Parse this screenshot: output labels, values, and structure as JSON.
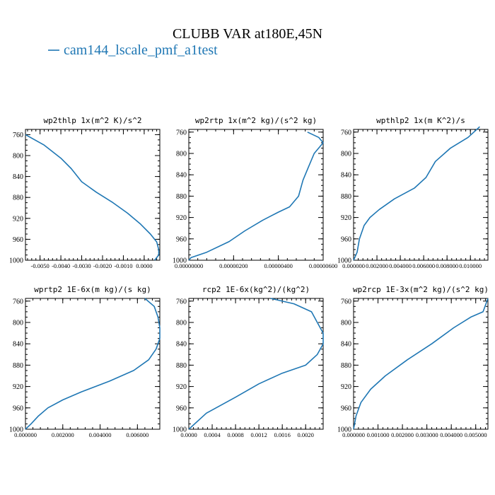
{
  "figure": {
    "title": "CLUBB VAR at180E,45N",
    "legend_label": "cam144_lscale_pmf_a1test",
    "line_color": "#1f77b4"
  },
  "chart_data": [
    {
      "type": "line",
      "title": "wp2thlp  1x(m^2 K)/s^2",
      "ylim": [
        1000,
        750
      ],
      "y_ticks": [
        760,
        800,
        840,
        880,
        920,
        960,
        1000
      ],
      "xlim": [
        -0.0057,
        0.00075
      ],
      "x_ticks": [
        -0.005,
        -0.004,
        -0.003,
        -0.002,
        -0.001,
        0.0
      ],
      "x_tick_labels": [
        "-0.0050",
        "-0.0040",
        "-0.0030",
        "-0.0020",
        "-0.0010",
        "0.0000"
      ],
      "series": [
        {
          "x": [
            -0.0057,
            -0.0048,
            -0.004,
            -0.0035,
            -0.003,
            -0.0023,
            -0.0015,
            -0.0008,
            -0.0002,
            0.0003,
            0.0006,
            0.0007,
            0.0007,
            0.0005
          ],
          "y": [
            760,
            780,
            805,
            825,
            850,
            870,
            890,
            910,
            930,
            950,
            965,
            980,
            990,
            1000
          ]
        }
      ]
    },
    {
      "type": "line",
      "title": "wp2rtp  1x(m^2 kg)/(s^2 kg)",
      "ylim": [
        1000,
        755
      ],
      "y_ticks": [
        760,
        800,
        840,
        880,
        920,
        960,
        1000
      ],
      "xlim": [
        0.0,
        6e-06
      ],
      "x_ticks": [
        0.0,
        2e-06,
        4e-06,
        6e-06
      ],
      "x_tick_labels": [
        "0.00000000",
        "0.00000200",
        "0.00000400",
        "0.00000600"
      ],
      "series": [
        {
          "x": [
            5.3e-06,
            5.8e-06,
            6e-06,
            5.6e-06,
            5.3e-06,
            5.1e-06,
            4.9e-06,
            4.5e-06,
            4e-06,
            3.3e-06,
            2.5e-06,
            1.8e-06,
            8e-07,
            1e-07,
            0.0
          ],
          "y": [
            760,
            770,
            780,
            800,
            830,
            850,
            880,
            900,
            910,
            925,
            945,
            965,
            985,
            995,
            1000
          ]
        }
      ]
    },
    {
      "type": "line",
      "title": "wpthlp2  1x(m K^2)/s",
      "ylim": [
        1000,
        755
      ],
      "y_ticks": [
        760,
        800,
        840,
        880,
        920,
        960,
        1000
      ],
      "xlim": [
        0.0,
        0.0115
      ],
      "x_ticks": [
        0.0,
        0.002,
        0.004,
        0.006,
        0.008,
        0.01
      ],
      "x_tick_labels": [
        "0.000000",
        "0.002000",
        "0.004000",
        "0.006000",
        "0.008000",
        "0.010000"
      ],
      "series": [
        {
          "x": [
            0.0,
            0.0003,
            0.0005,
            0.0009,
            0.0014,
            0.0022,
            0.0035,
            0.0052,
            0.0062,
            0.007,
            0.0083,
            0.0098,
            0.0108
          ],
          "y": [
            1000,
            985,
            960,
            935,
            920,
            905,
            885,
            865,
            845,
            815,
            790,
            770,
            750
          ]
        }
      ]
    },
    {
      "type": "line",
      "title": "wprtp2  1E-6x(m kg)/(s kg)",
      "ylim": [
        1000,
        755
      ],
      "y_ticks": [
        760,
        800,
        840,
        880,
        920,
        960,
        1000
      ],
      "xlim": [
        0.0,
        0.0072
      ],
      "x_ticks": [
        0.0,
        0.002,
        0.004,
        0.006
      ],
      "x_tick_labels": [
        "0.000000",
        "0.002000",
        "0.004000",
        "0.006000"
      ],
      "series": [
        {
          "x": [
            0.0064,
            0.0069,
            0.0071,
            0.0072,
            0.0072,
            0.007,
            0.0066,
            0.0058,
            0.0045,
            0.003,
            0.002,
            0.0012,
            0.0007,
            0.0003,
            0.0
          ],
          "y": [
            755,
            770,
            790,
            810,
            830,
            850,
            870,
            890,
            910,
            930,
            945,
            960,
            975,
            990,
            1000
          ]
        }
      ]
    },
    {
      "type": "line",
      "title": "rcp2  1E-6x(kg^2)/(kg^2)",
      "ylim": [
        1000,
        755
      ],
      "y_ticks": [
        760,
        800,
        840,
        880,
        920,
        960,
        1000
      ],
      "xlim": [
        0.0,
        0.0023
      ],
      "x_ticks": [
        0.0,
        0.0004,
        0.0008,
        0.0012,
        0.0016,
        0.002
      ],
      "x_tick_labels": [
        "0.0000",
        "0.0004",
        "0.0008",
        "0.0012",
        "0.0016",
        "0.0020"
      ],
      "series": [
        {
          "x": [
            0.0014,
            0.0018,
            0.0021,
            0.0022,
            0.0023,
            0.0023,
            0.0022,
            0.002,
            0.0016,
            0.0012,
            0.0008,
            0.0003,
            0.0
          ],
          "y": [
            755,
            765,
            780,
            800,
            820,
            840,
            860,
            880,
            895,
            915,
            940,
            970,
            1000
          ]
        }
      ]
    },
    {
      "type": "line",
      "title": "wp2rcp  1E-3x(m^2 kg)/(s^2 kg)",
      "ylim": [
        1000,
        755
      ],
      "y_ticks": [
        760,
        800,
        840,
        880,
        920,
        960,
        1000
      ],
      "xlim": [
        0.0,
        0.0055
      ],
      "x_ticks": [
        0.0,
        0.001,
        0.002,
        0.003,
        0.004,
        0.005
      ],
      "x_tick_labels": [
        "0.000000",
        "0.001000",
        "0.002000",
        "0.003000",
        "0.004000",
        "0.005000"
      ],
      "series": [
        {
          "x": [
            0.0055,
            0.0053,
            0.0048,
            0.0041,
            0.0032,
            0.0022,
            0.0013,
            0.0007,
            0.0003,
            0.0001,
            0.0
          ],
          "y": [
            755,
            780,
            790,
            810,
            840,
            870,
            900,
            925,
            950,
            975,
            1000
          ]
        }
      ]
    }
  ]
}
